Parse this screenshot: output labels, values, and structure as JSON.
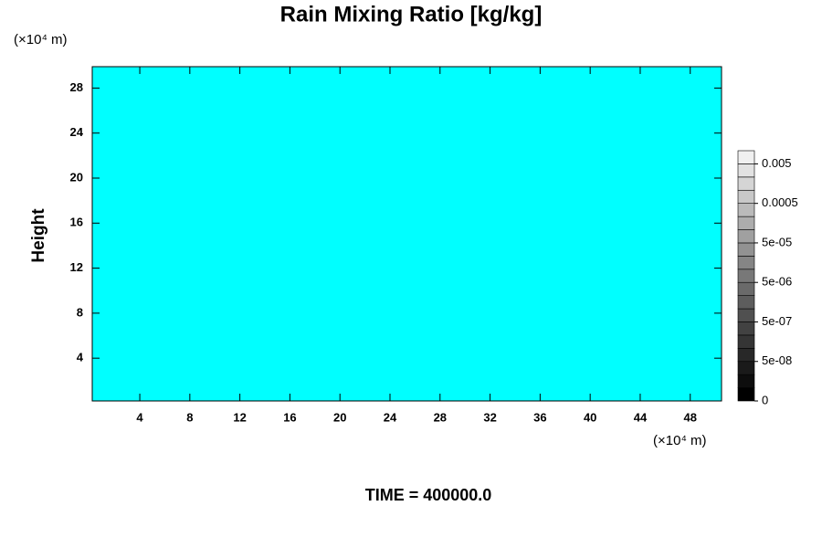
{
  "chart_data": {
    "type": "contour",
    "title": "Rain Mixing Ratio [kg/kg]",
    "ylabel": "Height",
    "yunit": "(×10⁴ m)",
    "xunit": "(×10⁴ m)",
    "footer": "TIME = 400000.0",
    "fill_color": "#00ffff",
    "xlim": [
      0.2,
      50.5
    ],
    "ylim": [
      0.2,
      29.9
    ],
    "xticks": [
      4,
      8,
      12,
      16,
      20,
      24,
      28,
      32,
      36,
      40,
      44,
      48
    ],
    "yticks": [
      4,
      8,
      12,
      16,
      20,
      24,
      28
    ],
    "colorbar": {
      "colors": [
        "#000000",
        "#0d0d0d",
        "#1a1a1a",
        "#282828",
        "#353535",
        "#424242",
        "#505050",
        "#5d5d5d",
        "#6a6a6a",
        "#787878",
        "#858585",
        "#929292",
        "#a0a0a0",
        "#adadad",
        "#bababa",
        "#c8c8c8",
        "#d5d5d5",
        "#e2e2e2",
        "#f0f0f0"
      ],
      "ticks": [
        0,
        {
          "value": 5e-08,
          "label": "5e-08"
        },
        {
          "value": 5e-07,
          "label": "5e-07"
        },
        {
          "value": 5e-06,
          "label": "5e-06"
        },
        {
          "value": 5e-05,
          "label": "5e-05"
        },
        0.0005,
        0.005
      ]
    }
  }
}
